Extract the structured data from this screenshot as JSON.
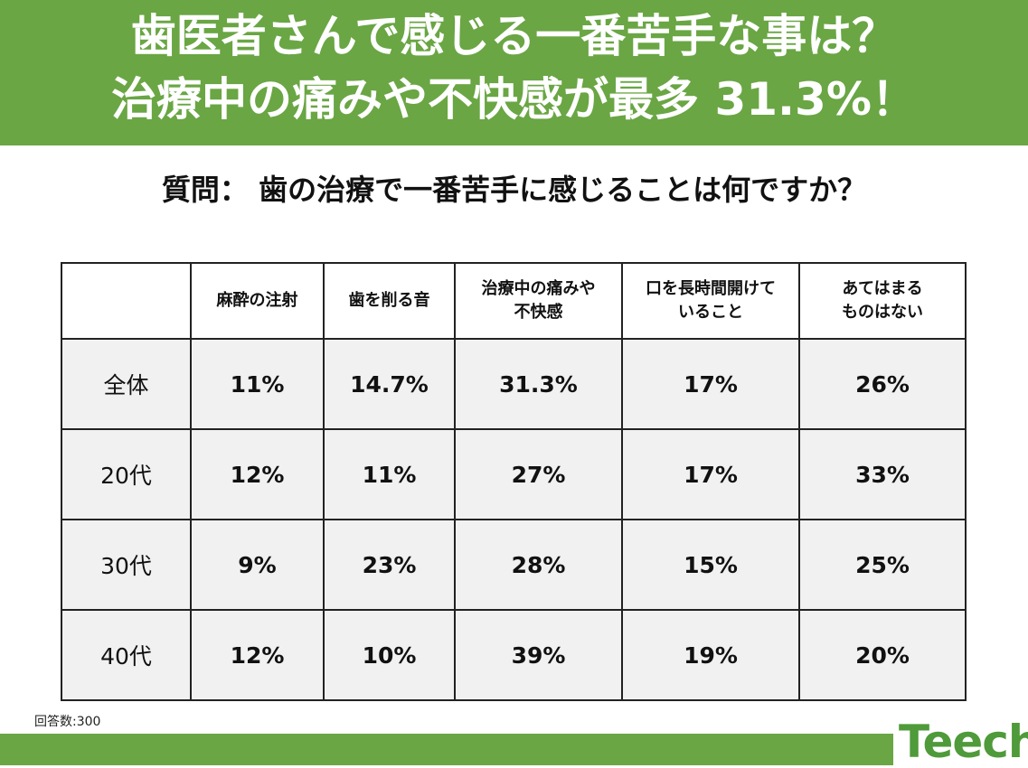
{
  "title": {
    "line1": "歯医者さんで感じる一番苦手な事は？",
    "line2": "治療中の痛みや不快感が最多 31.3%！"
  },
  "question": "質問：  歯の治療で一番苦手に感じることは何ですか？",
  "chart_data": {
    "type": "table",
    "columns": [
      [
        "麻酔の注射"
      ],
      [
        "歯を削る音"
      ],
      [
        "治療中の痛みや",
        "不快感"
      ],
      [
        "口を長時間開けて",
        "いること"
      ],
      [
        "あてはまる",
        "ものはない"
      ]
    ],
    "rows": [
      {
        "label": "全体",
        "values": [
          "11%",
          "14.7%",
          "31.3%",
          "17%",
          "26%"
        ]
      },
      {
        "label": "20代",
        "values": [
          "12%",
          "11%",
          "27%",
          "17%",
          "33%"
        ]
      },
      {
        "label": "30代",
        "values": [
          "9%",
          "23%",
          "28%",
          "15%",
          "25%"
        ]
      },
      {
        "label": "40代",
        "values": [
          "12%",
          "10%",
          "39%",
          "19%",
          "20%"
        ]
      }
    ]
  },
  "respondents": "回答数:300",
  "logo": {
    "text": "Teech"
  },
  "colors": {
    "brand_green": "#6aa644",
    "cell_bg": "#f1f1f1"
  }
}
